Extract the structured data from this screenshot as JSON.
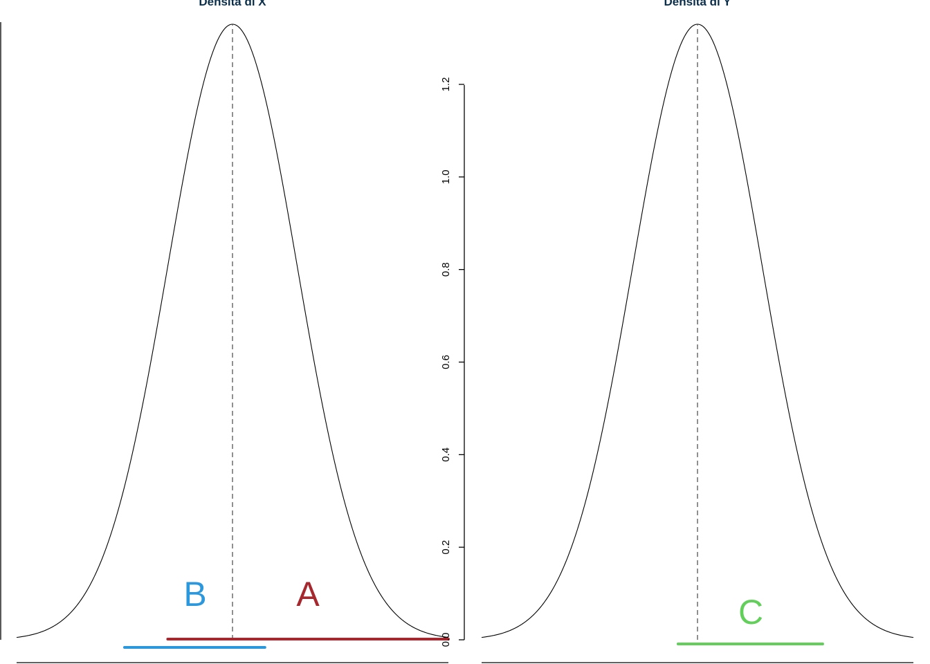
{
  "colors": {
    "title": "#0b2e4a",
    "curve": "#000000",
    "mean_line": "#555555",
    "region_a": "#a5282e",
    "region_b": "#2b97dc",
    "region_c": "#62cf5a"
  },
  "chart_data": [
    {
      "type": "line",
      "title": "Densità di X",
      "distribution": "normal",
      "mean": 0,
      "sd": 0.3,
      "peak_density": 1.33,
      "xlim": [
        -1,
        1
      ],
      "ylim": [
        0,
        1.33
      ],
      "mean_line": "dashed",
      "regions": [
        {
          "label": "A",
          "color_key": "region_a",
          "x_start": -0.3,
          "x_end": 1.0
        },
        {
          "label": "B",
          "color_key": "region_b",
          "x_start": -0.5,
          "x_end": 0.15
        }
      ]
    },
    {
      "type": "line",
      "title": "Densità di Y",
      "distribution": "normal",
      "mean": 0,
      "sd": 0.3,
      "peak_density": 1.33,
      "xlim": [
        -1,
        1
      ],
      "ylim": [
        0,
        1.33
      ],
      "y_ticks": [
        "0.0",
        "0.2",
        "0.4",
        "0.6",
        "0.8",
        "1.0",
        "1.2"
      ],
      "y_tick_values": [
        0,
        0.2,
        0.4,
        0.6,
        0.8,
        1.0,
        1.2
      ],
      "mean_line": "dashed",
      "regions": [
        {
          "label": "C",
          "color_key": "region_c",
          "x_start": -0.09,
          "x_end": 0.58
        }
      ]
    }
  ]
}
